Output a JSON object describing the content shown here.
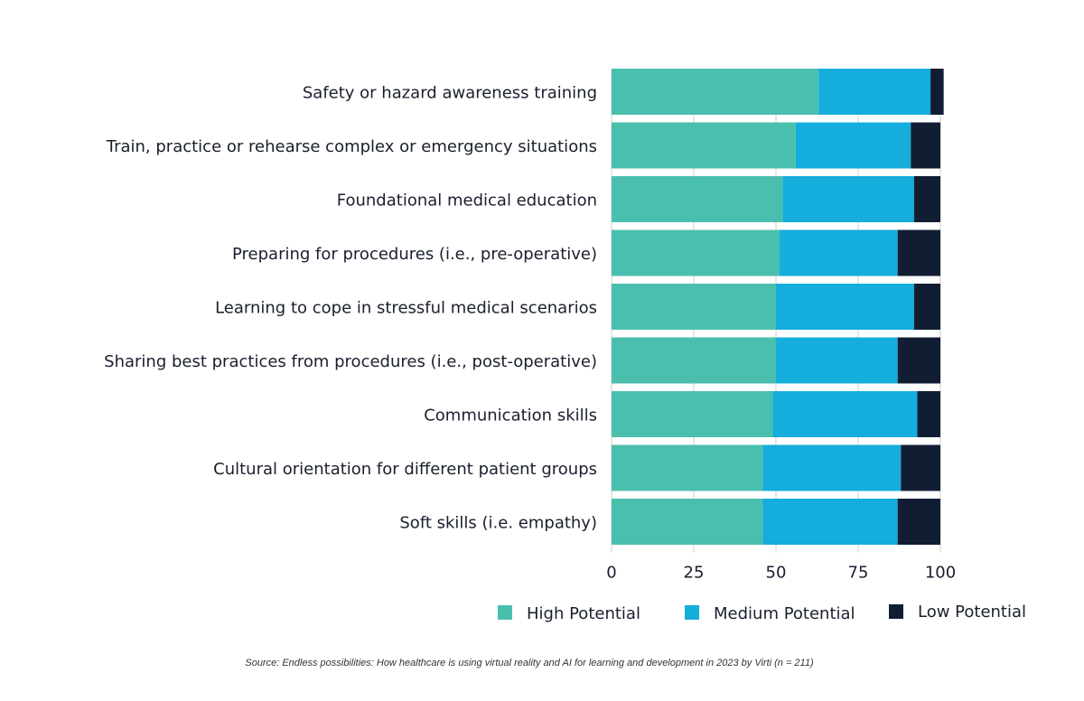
{
  "chart_data": {
    "type": "bar",
    "orientation": "horizontal",
    "stacked": true,
    "categories": [
      "Safety or hazard awareness training",
      "Train, practice or rehearse complex or emergency situations",
      "Foundational medical education",
      "Preparing for procedures (i.e., pre-operative)",
      "Learning to cope in stressful medical scenarios",
      "Sharing best practices from procedures (i.e., post-operative)",
      "Communication skills",
      "Cultural orientation for different patient groups",
      "Soft skills (i.e. empathy)"
    ],
    "series": [
      {
        "name": "High Potential",
        "color": "#4bbfae",
        "values": [
          63,
          56,
          52,
          51,
          50,
          50,
          49,
          46,
          46
        ]
      },
      {
        "name": "Medium Potential",
        "color": "#14addc",
        "values": [
          34,
          35,
          40,
          36,
          42,
          37,
          44,
          42,
          41
        ]
      },
      {
        "name": "Low Potential",
        "color": "#111d33",
        "values": [
          4,
          9,
          8,
          13,
          8,
          13,
          7,
          12,
          13
        ]
      }
    ],
    "xlim": [
      0,
      100
    ],
    "xticks": [
      "0",
      "25",
      "50",
      "75",
      "100"
    ],
    "legend_position": "bottom",
    "grid": true
  },
  "source_note": "Source: Endless possibilities: How healthcare is using virtual reality and AI for learning and development in 2023 by Virti (n = 211)"
}
